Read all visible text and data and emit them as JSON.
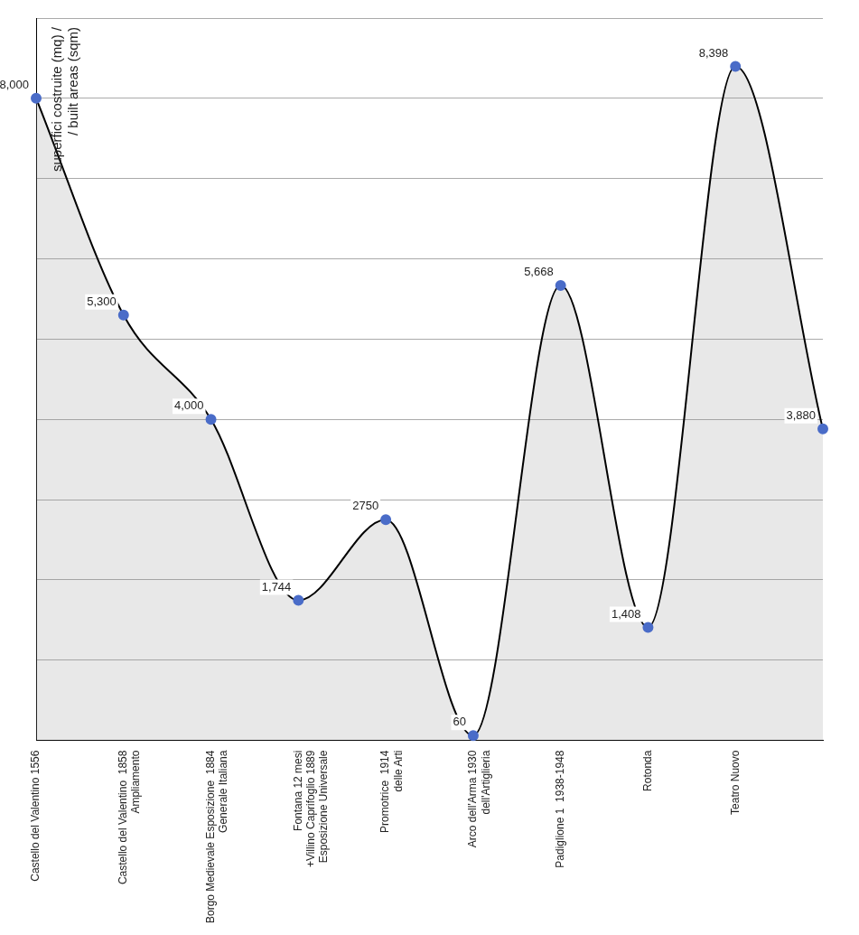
{
  "chart_data": {
    "type": "area",
    "ylabel": "superfici costruite (mq) / / built areas (sqm)",
    "categories": [
      "Castello del Valentino 1556",
      "Castello del Valentino  1858\nAmpliamento",
      "Borgo Medievale Esposizione  1884\nGenerale Italiana",
      "Fontana 12 mesi\n+Villino Caprifoglio 1889\nEsposizione Universale",
      "Promotrice  1914\ndelle Arti",
      "Arco dell'Arma 1930\ndell'Artiglieria",
      "Padiglione 1  1938-1948",
      "Rotonda",
      "Teatro Nuovo",
      null
    ],
    "series": [
      {
        "color": "#000000",
        "colors": [
          "#4a6cc8",
          "#4a6cc8",
          "#4a6cc8",
          "#4a6cc8",
          "#4a6cc8",
          "#4a6cc8",
          "#4a6cc8",
          "#4a6cc8",
          "#4a6cc8",
          "#4a6cc8"
        ],
        "values": [
          8000,
          5300,
          4000,
          1744,
          2750,
          60,
          5668,
          1408,
          8398,
          3880
        ],
        "value_labels": [
          "8,000",
          "5,300",
          "4,000",
          "1,744",
          "2750",
          "60",
          "5,668",
          "1,408",
          "8,398",
          "3,880"
        ]
      }
    ],
    "marker": "circle",
    "grid": "y",
    "tick_labels": "x"
  }
}
